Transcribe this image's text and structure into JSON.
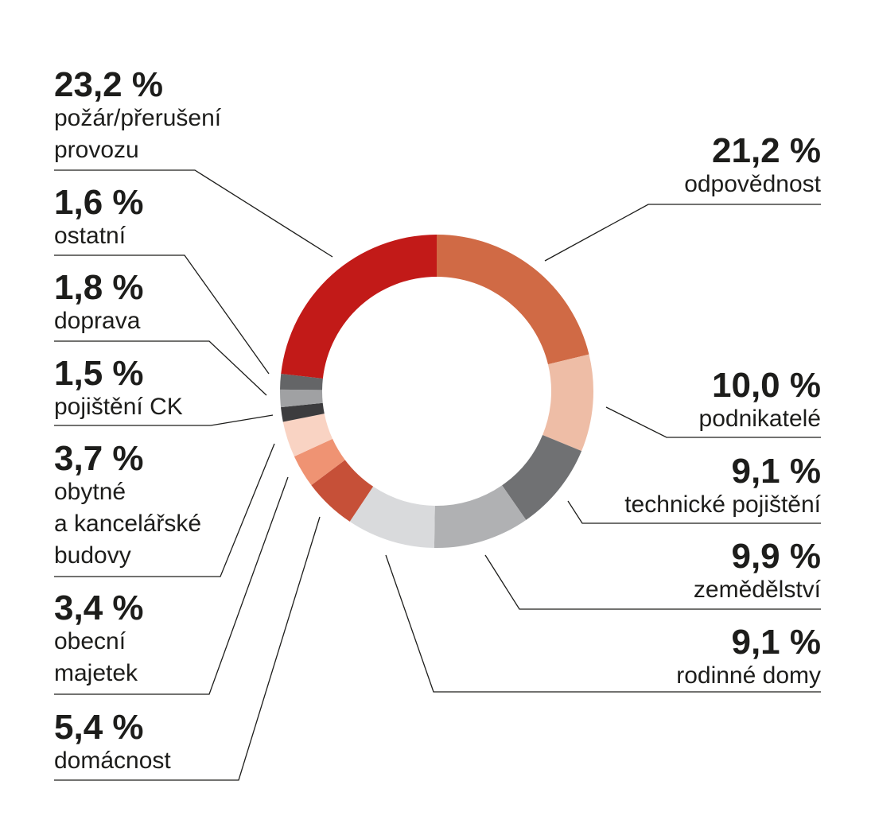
{
  "chart_data": {
    "type": "pie",
    "donut": true,
    "start": "top",
    "direction": "clockwise",
    "unit": "%",
    "slices": [
      {
        "label": "odpovědnost",
        "value": 21.2,
        "value_text": "21,2 %",
        "lines": [
          "odpovědnost"
        ],
        "color": "#d06a45"
      },
      {
        "label": "podnikatelé",
        "value": 10.0,
        "value_text": "10,0 %",
        "lines": [
          "podnikatelé"
        ],
        "color": "#eebda6"
      },
      {
        "label": "technické pojištění",
        "value": 9.1,
        "value_text": "9,1 %",
        "lines": [
          "technické pojištění"
        ],
        "color": "#707173"
      },
      {
        "label": "zemědělství",
        "value": 9.9,
        "value_text": "9,9 %",
        "lines": [
          "zemědělství"
        ],
        "color": "#b0b1b3"
      },
      {
        "label": "rodinné domy",
        "value": 9.1,
        "value_text": "9,1 %",
        "lines": [
          "rodinné domy"
        ],
        "color": "#d9dadc"
      },
      {
        "label": "domácnost",
        "value": 5.4,
        "value_text": "5,4 %",
        "lines": [
          "domácnost"
        ],
        "color": "#c65038"
      },
      {
        "label": "obecní majetek",
        "value": 3.4,
        "value_text": "3,4 %",
        "lines": [
          "obecní",
          "majetek"
        ],
        "color": "#ef9373"
      },
      {
        "label": "obytné a kancelářské budovy",
        "value": 3.7,
        "value_text": "3,7 %",
        "lines": [
          "obytné",
          "a kancelářské",
          "budovy"
        ],
        "color": "#f9d3c3"
      },
      {
        "label": "pojištění CK",
        "value": 1.5,
        "value_text": "1,5 %",
        "lines": [
          "pojištění CK"
        ],
        "color": "#3c3c3e"
      },
      {
        "label": "doprava",
        "value": 1.8,
        "value_text": "1,8 %",
        "lines": [
          "doprava"
        ],
        "color": "#a0a1a3"
      },
      {
        "label": "ostatní",
        "value": 1.6,
        "value_text": "1,6 %",
        "lines": [
          "ostatní"
        ],
        "color": "#646567"
      },
      {
        "label": "požár/přerušení provozu",
        "value": 23.2,
        "value_text": "23,2 %",
        "lines": [
          "požár/přerušení",
          "provozu"
        ],
        "color": "#c21a18"
      }
    ]
  }
}
